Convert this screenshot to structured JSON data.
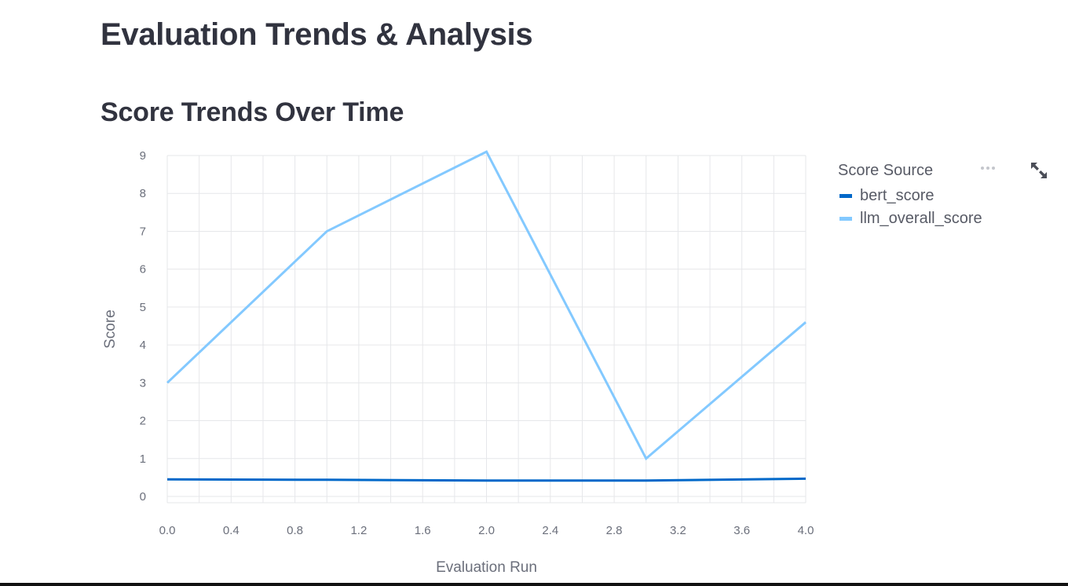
{
  "page": {
    "title": "Evaluation Trends & Analysis",
    "section_title": "Score Trends Over Time"
  },
  "toolbar": {
    "more_icon": "more-horizontal-icon",
    "expand_icon": "fullscreen-expand-icon"
  },
  "chart_data": {
    "type": "line",
    "xlabel": "Evaluation Run",
    "ylabel": "Score",
    "xlim": [
      0,
      4
    ],
    "ylim": [
      0,
      9
    ],
    "x_ticks": [
      "0.0",
      "0.4",
      "0.8",
      "1.2",
      "1.6",
      "2.0",
      "2.4",
      "2.8",
      "3.2",
      "3.6",
      "4.0"
    ],
    "y_ticks": [
      "0",
      "1",
      "2",
      "3",
      "4",
      "5",
      "6",
      "7",
      "8",
      "9"
    ],
    "grid": true,
    "legend": {
      "title": "Score Source",
      "placement": "right"
    },
    "series": [
      {
        "name": "bert_score",
        "color": "#0068c9",
        "x": [
          0,
          1,
          2,
          3,
          4
        ],
        "y": [
          0.45,
          0.44,
          0.42,
          0.42,
          0.47
        ]
      },
      {
        "name": "llm_overall_score",
        "color": "#83c9ff",
        "x": [
          0,
          1,
          2,
          3,
          4
        ],
        "y": [
          3,
          7,
          9.1,
          1,
          4.6
        ]
      }
    ]
  }
}
